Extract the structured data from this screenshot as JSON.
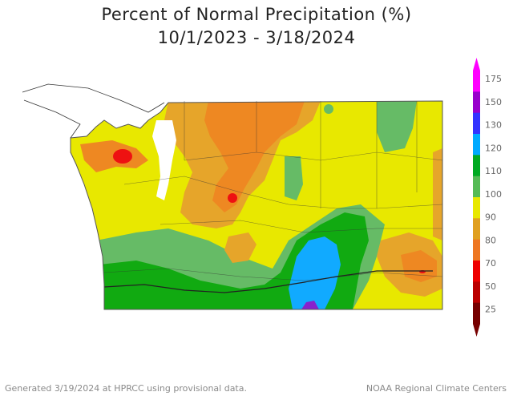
{
  "title": "Percent of Normal Precipitation (%)",
  "subtitle": "10/1/2023 - 3/18/2024",
  "legend": {
    "ticks": [
      "175",
      "150",
      "130",
      "120",
      "110",
      "100",
      "90",
      "80",
      "70",
      "50",
      "25"
    ],
    "colors": [
      "#ff00ff",
      "#9900cc",
      "#3333ff",
      "#00aaff",
      "#00aa22",
      "#55bb55",
      "#e8e800",
      "#e0a020",
      "#ee7722",
      "#ee0000",
      "#bb0000",
      "#770000"
    ]
  },
  "footer": {
    "left": "Generated 3/19/2024 at HPRCC using provisional data.",
    "right": "NOAA Regional Climate Centers"
  },
  "map": {
    "region": "Washington",
    "colors": {
      "above_normal_light": "#66bb66",
      "above_normal": "#11aa11",
      "wet_high": "#11aaff",
      "wettest": "#8822cc",
      "near_normal": "#e8e800",
      "below_normal_light": "#e6a52a",
      "below_normal": "#ee8822",
      "dry": "#ee1111",
      "water": "#ffffff"
    }
  }
}
